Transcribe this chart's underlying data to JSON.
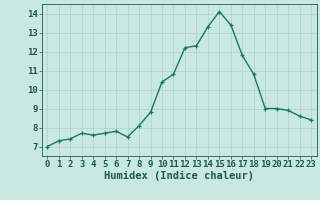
{
  "x": [
    0,
    1,
    2,
    3,
    4,
    5,
    6,
    7,
    8,
    9,
    10,
    11,
    12,
    13,
    14,
    15,
    16,
    17,
    18,
    19,
    20,
    21,
    22,
    23
  ],
  "y": [
    7.0,
    7.3,
    7.4,
    7.7,
    7.6,
    7.7,
    7.8,
    7.5,
    8.1,
    8.8,
    10.4,
    10.8,
    12.2,
    12.3,
    13.3,
    14.1,
    13.4,
    11.8,
    10.8,
    9.0,
    9.0,
    8.9,
    8.6,
    8.4
  ],
  "line_color": "#1a7a5e",
  "marker": "+",
  "marker_size": 3,
  "bg_color": "#c8e8e0",
  "grid_color": "#b0d0c8",
  "tick_color": "#1a5a50",
  "xlabel": "Humidex (Indice chaleur)",
  "xlim": [
    -0.5,
    23.5
  ],
  "ylim": [
    6.5,
    14.5
  ],
  "yticks": [
    7,
    8,
    9,
    10,
    11,
    12,
    13,
    14
  ],
  "xticks": [
    0,
    1,
    2,
    3,
    4,
    5,
    6,
    7,
    8,
    9,
    10,
    11,
    12,
    13,
    14,
    15,
    16,
    17,
    18,
    19,
    20,
    21,
    22,
    23
  ],
  "font_size": 6.5,
  "label_font_size": 7.5
}
